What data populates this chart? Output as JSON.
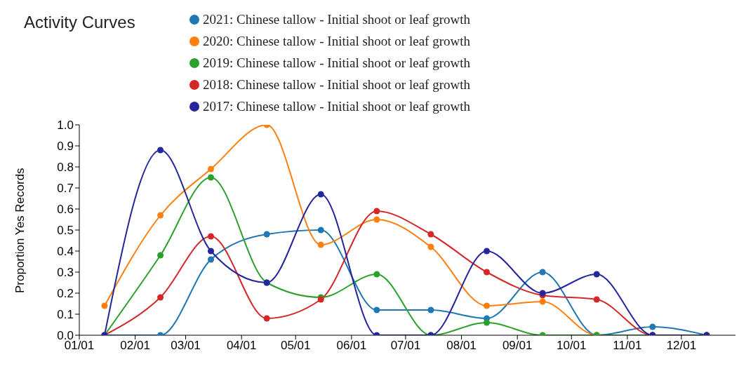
{
  "chart_data": {
    "type": "line",
    "title": "Activity Curves",
    "ylabel": "Proportion Yes Records",
    "x": [
      "--01-15",
      "--02-15",
      "--03-15",
      "--04-15",
      "--05-15",
      "--06-15",
      "--07-15",
      "--08-15",
      "--09-15",
      "--10-15",
      "--11-15",
      "--12-15"
    ],
    "series": [
      {
        "name": "2021: Chinese tallow - Initial shoot or leaf growth",
        "color": "#1f77b4",
        "values": [
          0,
          0,
          0.36,
          0.48,
          0.5,
          0.12,
          0.12,
          0.08,
          0.3,
          0,
          0.04,
          0
        ]
      },
      {
        "name": "2020: Chinese tallow - Initial shoot or leaf growth",
        "color": "#ff7f0e",
        "values": [
          0.14,
          0.57,
          0.79,
          1.0,
          0.43,
          0.55,
          0.42,
          0.14,
          0.16,
          0,
          0,
          0
        ]
      },
      {
        "name": "2019: Chinese tallow - Initial shoot or leaf growth",
        "color": "#2ca02c",
        "values": [
          0,
          0.38,
          0.75,
          0.25,
          0.18,
          0.29,
          0,
          0.06,
          0,
          0,
          0,
          0
        ]
      },
      {
        "name": "2018: Chinese tallow - Initial shoot or leaf growth",
        "color": "#d62728",
        "values": [
          0,
          0.18,
          0.47,
          0.08,
          0.17,
          0.59,
          0.48,
          0.3,
          0.19,
          0.17,
          0,
          0
        ]
      },
      {
        "name": "2017: Chinese tallow - Initial shoot or leaf growth",
        "color": "#25259c",
        "values": [
          0,
          0.88,
          0.4,
          0.25,
          0.67,
          0,
          0,
          0.4,
          0.2,
          0.29,
          0,
          0
        ]
      }
    ],
    "xlim": [
      "--01-01",
      "--12-31"
    ],
    "xticks": [
      {
        "value": "--01-01",
        "label": "01/01"
      },
      {
        "value": "--02-01",
        "label": "02/01"
      },
      {
        "value": "--03-01",
        "label": "03/01"
      },
      {
        "value": "--04-01",
        "label": "04/01"
      },
      {
        "value": "--05-01",
        "label": "05/01"
      },
      {
        "value": "--06-01",
        "label": "06/01"
      },
      {
        "value": "--07-01",
        "label": "07/01"
      },
      {
        "value": "--08-01",
        "label": "08/01"
      },
      {
        "value": "--09-01",
        "label": "09/01"
      },
      {
        "value": "--10-01",
        "label": "10/01"
      },
      {
        "value": "--11-01",
        "label": "11/01"
      },
      {
        "value": "--12-01",
        "label": "12/01"
      }
    ],
    "ylim": [
      0,
      1
    ],
    "yticks": [
      {
        "value": 0,
        "label": "0.0"
      },
      {
        "value": 0.1,
        "label": "0.1"
      },
      {
        "value": 0.2,
        "label": "0.2"
      },
      {
        "value": 0.3,
        "label": "0.3"
      },
      {
        "value": 0.4,
        "label": "0.4"
      },
      {
        "value": 0.5,
        "label": "0.5"
      },
      {
        "value": 0.6,
        "label": "0.6"
      },
      {
        "value": 0.7,
        "label": "0.7"
      },
      {
        "value": 0.8,
        "label": "0.8"
      },
      {
        "value": 0.9,
        "label": "0.9"
      },
      {
        "value": 1.0,
        "label": "1.0"
      }
    ],
    "grid": false,
    "legend": "top",
    "marker": "circle",
    "line_style": "solid"
  }
}
